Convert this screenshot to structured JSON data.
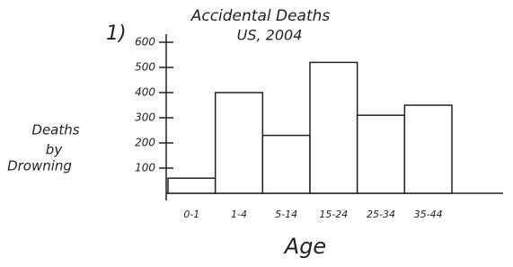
{
  "chart_data": {
    "type": "bar",
    "annotation": "1)",
    "title": "Accidental Deaths",
    "subtitle": "US, 2004",
    "ylabel": [
      "Deaths",
      "by",
      "Drowning"
    ],
    "xlabel": "Age",
    "categories": [
      "0-1",
      "1-4",
      "5-14",
      "15-24",
      "25-34",
      "35-44"
    ],
    "values": [
      60,
      400,
      230,
      520,
      310,
      350
    ],
    "color": "#ffffff",
    "edgecolor": "#222222",
    "ylim": [
      0,
      650
    ],
    "yticks": [
      100,
      200,
      300,
      400,
      500,
      600
    ],
    "grid": false
  }
}
